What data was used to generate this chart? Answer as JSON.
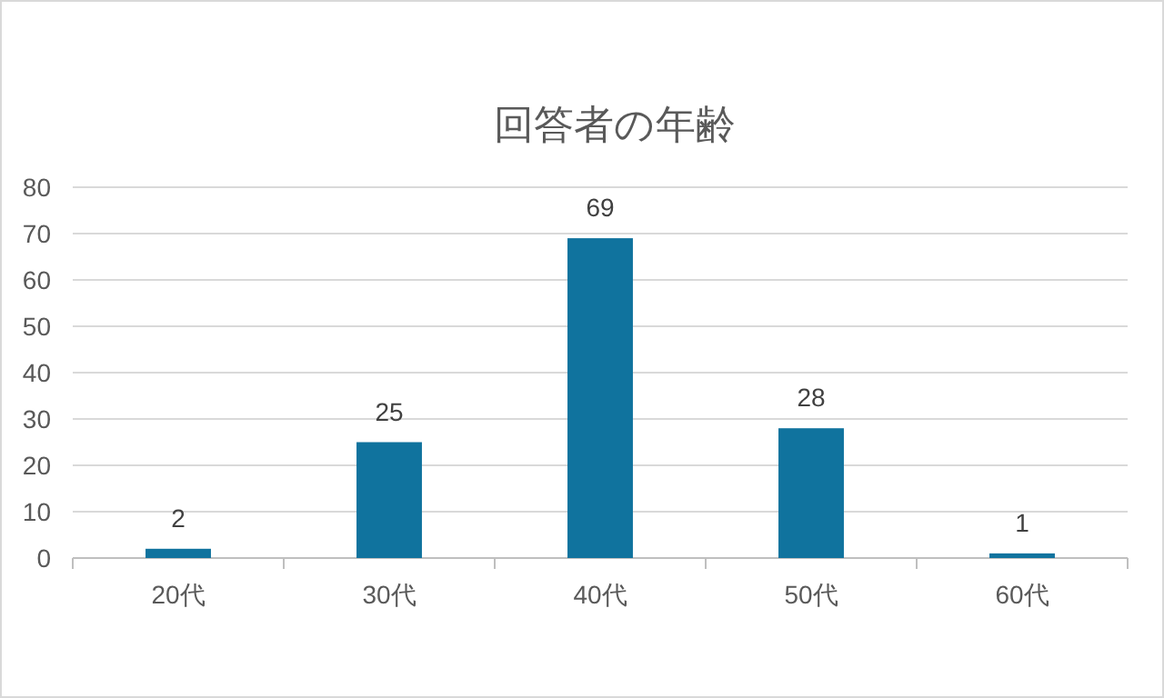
{
  "chart_data": {
    "type": "bar",
    "title": "回答者の年齢",
    "categories": [
      "20代",
      "30代",
      "40代",
      "50代",
      "60代"
    ],
    "values": [
      2,
      25,
      69,
      28,
      1
    ],
    "color": "#10739e",
    "ylim": [
      0,
      80
    ],
    "yticks": [
      0,
      10,
      20,
      30,
      40,
      50,
      60,
      70,
      80
    ],
    "grid": "y",
    "data_labels": true
  }
}
